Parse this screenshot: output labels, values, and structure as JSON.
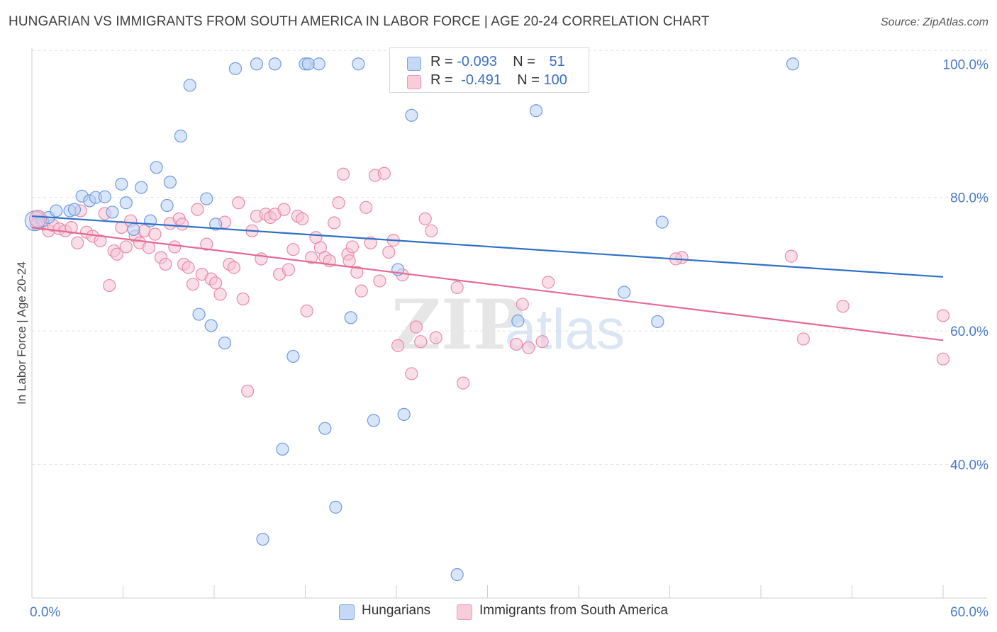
{
  "header": {
    "title": "HUNGARIAN VS IMMIGRANTS FROM SOUTH AMERICA IN LABOR FORCE | AGE 20-24 CORRELATION CHART",
    "source": "Source: ZipAtlas.com"
  },
  "legend": {
    "series1": {
      "r_label": "R =",
      "r_value": "-0.093",
      "n_label": "N =",
      "n_value": "51"
    },
    "series2": {
      "r_label": "R =",
      "r_value": "-0.491",
      "n_label": "N =",
      "n_value": "100"
    }
  },
  "bottom_legend": {
    "series1": "Hungarians",
    "series2": "Immigrants from South America"
  },
  "colors": {
    "blue_fill": "#b9d0f3",
    "blue_stroke": "#6f9be0",
    "blue_line": "#2f6fc8",
    "pink_fill": "#f6c3d3",
    "pink_stroke": "#e98aab",
    "pink_line": "#e36a93",
    "tick_text": "#4a7ac9",
    "grid": "#e2e2e2"
  },
  "chart_data": {
    "type": "scatter",
    "title": "HUNGARIAN VS IMMIGRANTS FROM SOUTH AMERICA IN LABOR FORCE | AGE 20-24 CORRELATION CHART",
    "xlabel": "",
    "ylabel": "In Labor Force | Age 20-24",
    "xlim": [
      0,
      60
    ],
    "ylim": [
      20,
      103
    ],
    "x_tick_labels": [
      "0.0%",
      "60.0%"
    ],
    "y_ticks": [
      40,
      60,
      80,
      100
    ],
    "y_tick_labels": [
      "40.0%",
      "60.0%",
      "80.0%",
      "100.0%"
    ],
    "grid": true,
    "legend_placement": "top-center",
    "series": [
      {
        "name": "Hungarians",
        "R": -0.093,
        "N": 51,
        "trend": {
          "x": [
            0,
            60
          ],
          "y": [
            77.2,
            68.1
          ]
        },
        "points": [
          [
            0.3,
            76.0
          ],
          [
            0.7,
            76.5
          ],
          [
            1.1,
            77.0
          ],
          [
            1.6,
            78.0
          ],
          [
            2.5,
            78.0
          ],
          [
            2.8,
            78.2
          ],
          [
            3.3,
            80.2
          ],
          [
            3.8,
            79.5
          ],
          [
            4.2,
            80.0
          ],
          [
            4.8,
            80.1
          ],
          [
            5.3,
            77.8
          ],
          [
            5.9,
            82.0
          ],
          [
            6.2,
            79.2
          ],
          [
            6.7,
            75.2
          ],
          [
            7.2,
            81.5
          ],
          [
            7.8,
            76.5
          ],
          [
            8.2,
            84.5
          ],
          [
            8.9,
            78.8
          ],
          [
            9.1,
            82.3
          ],
          [
            9.8,
            89.2
          ],
          [
            10.4,
            96.8
          ],
          [
            11.0,
            62.5
          ],
          [
            11.5,
            79.8
          ],
          [
            11.8,
            60.8
          ],
          [
            12.1,
            76.0
          ],
          [
            12.7,
            58.2
          ],
          [
            13.4,
            99.3
          ],
          [
            14.8,
            100.0
          ],
          [
            15.2,
            28.8
          ],
          [
            16.0,
            100.0
          ],
          [
            16.5,
            42.3
          ],
          [
            17.2,
            56.2
          ],
          [
            18.0,
            100.0
          ],
          [
            18.2,
            100.0
          ],
          [
            18.9,
            100.0
          ],
          [
            19.3,
            45.4
          ],
          [
            20.0,
            33.6
          ],
          [
            21.0,
            62.0
          ],
          [
            21.5,
            100.0
          ],
          [
            22.5,
            46.6
          ],
          [
            24.1,
            69.2
          ],
          [
            24.5,
            47.5
          ],
          [
            25.0,
            92.3
          ],
          [
            28.0,
            23.5
          ],
          [
            32.0,
            61.5
          ],
          [
            33.2,
            93.0
          ],
          [
            33.8,
            100.0
          ],
          [
            39.0,
            65.8
          ],
          [
            41.2,
            61.4
          ],
          [
            41.5,
            76.3
          ],
          [
            50.1,
            100.0
          ]
        ]
      },
      {
        "name": "Immigrants from South America",
        "R": -0.491,
        "N": 100,
        "trend": {
          "x": [
            0,
            60
          ],
          "y": [
            75.5,
            58.6
          ]
        },
        "points": [
          [
            0.4,
            77.2
          ],
          [
            0.8,
            76.0
          ],
          [
            1.1,
            75.0
          ],
          [
            1.4,
            75.8
          ],
          [
            1.8,
            75.3
          ],
          [
            2.2,
            75.0
          ],
          [
            2.6,
            75.5
          ],
          [
            3.0,
            73.2
          ],
          [
            3.2,
            78.0
          ],
          [
            3.6,
            74.8
          ],
          [
            4.0,
            74.2
          ],
          [
            4.5,
            73.5
          ],
          [
            4.8,
            77.6
          ],
          [
            5.1,
            66.8
          ],
          [
            5.4,
            72.0
          ],
          [
            5.6,
            71.5
          ],
          [
            5.9,
            75.5
          ],
          [
            6.2,
            72.6
          ],
          [
            6.5,
            76.5
          ],
          [
            6.8,
            74.2
          ],
          [
            7.1,
            73.2
          ],
          [
            7.4,
            75.0
          ],
          [
            7.7,
            72.5
          ],
          [
            8.1,
            74.5
          ],
          [
            8.5,
            71.0
          ],
          [
            8.8,
            70.0
          ],
          [
            9.1,
            76.1
          ],
          [
            9.4,
            72.6
          ],
          [
            9.7,
            76.8
          ],
          [
            10.0,
            70.0
          ],
          [
            10.3,
            69.5
          ],
          [
            10.6,
            67.0
          ],
          [
            10.9,
            78.2
          ],
          [
            11.2,
            68.5
          ],
          [
            11.5,
            73.0
          ],
          [
            11.8,
            67.8
          ],
          [
            12.1,
            67.2
          ],
          [
            12.4,
            65.5
          ],
          [
            12.7,
            76.3
          ],
          [
            13.0,
            70.0
          ],
          [
            13.3,
            69.5
          ],
          [
            13.6,
            79.2
          ],
          [
            13.9,
            64.8
          ],
          [
            14.2,
            51.0
          ],
          [
            14.5,
            75.0
          ],
          [
            14.8,
            77.2
          ],
          [
            15.1,
            70.8
          ],
          [
            15.4,
            77.5
          ],
          [
            15.7,
            77.0
          ],
          [
            16.0,
            77.5
          ],
          [
            16.3,
            68.5
          ],
          [
            16.6,
            78.2
          ],
          [
            16.9,
            69.2
          ],
          [
            17.2,
            72.2
          ],
          [
            17.5,
            77.2
          ],
          [
            17.8,
            76.8
          ],
          [
            18.1,
            63.0
          ],
          [
            18.4,
            71.0
          ],
          [
            18.7,
            74.0
          ],
          [
            19.0,
            72.5
          ],
          [
            19.3,
            71.0
          ],
          [
            19.6,
            70.5
          ],
          [
            19.9,
            76.2
          ],
          [
            20.2,
            79.2
          ],
          [
            20.5,
            83.5
          ],
          [
            20.8,
            71.5
          ],
          [
            21.1,
            72.6
          ],
          [
            21.4,
            68.8
          ],
          [
            21.7,
            66.0
          ],
          [
            22.0,
            78.5
          ],
          [
            22.3,
            73.2
          ],
          [
            22.6,
            83.3
          ],
          [
            22.9,
            67.5
          ],
          [
            23.2,
            83.6
          ],
          [
            23.5,
            71.8
          ],
          [
            23.8,
            73.6
          ],
          [
            24.1,
            57.8
          ],
          [
            24.4,
            68.4
          ],
          [
            25.0,
            53.6
          ],
          [
            25.3,
            60.6
          ],
          [
            25.6,
            58.4
          ],
          [
            25.9,
            76.8
          ],
          [
            26.3,
            75.0
          ],
          [
            26.6,
            59.0
          ],
          [
            28.0,
            66.5
          ],
          [
            28.4,
            52.2
          ],
          [
            31.9,
            58.0
          ],
          [
            32.3,
            64.0
          ],
          [
            32.7,
            57.5
          ],
          [
            33.6,
            58.4
          ],
          [
            34.0,
            67.3
          ],
          [
            42.8,
            71.0
          ],
          [
            50.0,
            71.2
          ],
          [
            50.8,
            58.8
          ],
          [
            53.4,
            63.7
          ],
          [
            60.0,
            55.8
          ],
          [
            60.0,
            62.3
          ],
          [
            42.4,
            70.8
          ],
          [
            20.9,
            70.5
          ],
          [
            9.9,
            76.0
          ]
        ]
      }
    ]
  }
}
